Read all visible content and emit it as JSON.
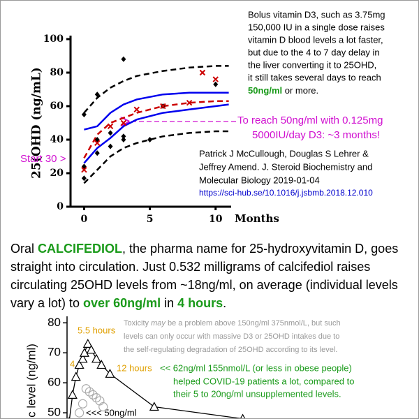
{
  "chart_data": [
    {
      "type": "line",
      "ylabel": "25(OHD (ng/mL)",
      "xlabel": "Months",
      "xlim": [
        -0.5,
        11.5
      ],
      "ylim": [
        0,
        100
      ],
      "xticks": [
        0,
        5,
        10
      ],
      "yticks": [
        0,
        20,
        40,
        60,
        80,
        100
      ],
      "series": [
        {
          "color": "#000000",
          "dashed": true,
          "x": [
            0,
            1,
            2,
            3,
            4,
            6,
            8,
            10,
            11
          ],
          "values": [
            56,
            65,
            71,
            75,
            78,
            81,
            83,
            84,
            84
          ]
        },
        {
          "color": "#cc0000",
          "dashed": true,
          "x": [
            0,
            1,
            2,
            3,
            4,
            6,
            8,
            10,
            11
          ],
          "values": [
            29,
            43,
            50,
            53,
            56,
            60,
            62,
            63,
            63
          ]
        },
        {
          "color": "#0000ee",
          "x": [
            0,
            1,
            2,
            3,
            4,
            6,
            8,
            10,
            11
          ],
          "values": [
            46,
            48,
            56,
            61,
            64,
            67,
            68,
            68,
            68
          ]
        },
        {
          "color": "#0000ee",
          "x": [
            0,
            1,
            2,
            3,
            4,
            6,
            8,
            10,
            11
          ],
          "values": [
            26,
            35,
            41,
            48,
            52,
            56,
            58,
            60,
            61
          ]
        },
        {
          "color": "#000000",
          "dashed": true,
          "x": [
            0,
            1,
            2,
            3,
            4,
            6,
            8,
            10,
            11
          ],
          "values": [
            14,
            22,
            30,
            35,
            38,
            42,
            44,
            45,
            45
          ]
        },
        {
          "color": "#000000",
          "marker": "diamond",
          "line": false,
          "x": [
            0,
            0,
            1,
            1,
            2,
            2,
            3,
            3,
            5,
            6,
            10,
            0,
            1,
            3
          ],
          "values": [
            24,
            17,
            40,
            32,
            44,
            36,
            40,
            42,
            40,
            60,
            73,
            55,
            67,
            88
          ]
        },
        {
          "color": "#cc0000",
          "marker": "x",
          "line": false,
          "x": [
            0,
            1,
            2,
            3,
            4,
            6,
            8,
            9,
            10
          ],
          "values": [
            22,
            38,
            48,
            50,
            58,
            60,
            62,
            80,
            76
          ]
        }
      ],
      "note": [
        "Bolus vitamin D3, such as 3.75mg",
        "150,000 IU in a single dose raises",
        "vitamin D blood levels a lot faster,",
        "but due to the 4 to 7 day delay in",
        "the liver converting it to 25OHD,",
        "it still takes several days to reach"
      ],
      "note_end": [
        "50ng/ml",
        " or more."
      ],
      "callout": [
        "To reach 50ng/ml with 0.125mg",
        "5000IU/day D3: ~3 months!"
      ],
      "start_label": "Start 30 >",
      "citation": [
        "Patrick J McCullough, Douglas S Lehrer &",
        "Jeffrey Amend. J. Steroid Biochemistry and",
        "Molecular Biology 2019-01-04"
      ],
      "url": "https://sci-hub.se/10.1016/j.jsbmb.2018.12.010"
    },
    {
      "type": "line",
      "ylabel": "matic level (ng/ml)",
      "xlim": [
        0,
        103
      ],
      "ylim": [
        47.7,
        81
      ],
      "yticks": [
        50,
        60,
        70,
        80
      ],
      "series": [
        {
          "color": "#000000",
          "marker": "triangle",
          "line": true,
          "x": [
            0,
            1,
            2,
            3,
            4,
            4.5,
            5.5,
            6.5,
            8,
            9.5,
            12,
            25,
            51
          ],
          "values": [
            47,
            56,
            62,
            66,
            68,
            70,
            73,
            71,
            68,
            66,
            63,
            52,
            48
          ]
        },
        {
          "color": "#aaaaaa",
          "marker": "circle",
          "line": false,
          "x": [
            3,
            4,
            5,
            6,
            7,
            8,
            9,
            10
          ],
          "values": [
            50,
            53,
            58,
            57,
            56,
            55,
            54,
            52
          ]
        }
      ],
      "toxicity": [
        [
          "Toxicity ",
          "may",
          " be a problem above 150ng/ml 375nmol/L, but such"
        ],
        "levels can only occur with massive D3 or 25OHD intakes due to",
        "the self-regulating degradation of 25OHD according to its level."
      ],
      "peak_label": "5.5 hours",
      "early_label": "4",
      "late_label": "12 hours",
      "covid": [
        "<< 62ng/ml 155nmol/L (or less in obese people)",
        "helped COVID-19 patients a lot, compared to",
        "their 5 to 20ng/ml unsupplemented levels."
      ],
      "level_label": "<<< 50ng/ml"
    }
  ],
  "paragraph": [
    "Oral ",
    "CALCIFEDIOL",
    ", the pharma name for 25-hydroxyvitamin D, goes straight into circulation.  Just 0.532 milligrams of calcifediol raises circulating 25OHD levels from ~18ng/ml, on average (individual levels vary a lot) to ",
    "over 60ng/ml",
    " in ",
    "4 hours",
    "."
  ]
}
